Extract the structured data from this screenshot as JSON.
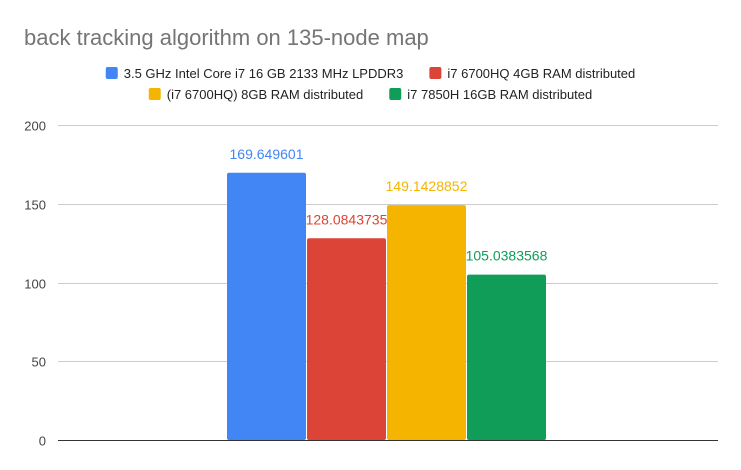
{
  "chart_data": {
    "type": "bar",
    "title": "back tracking algorithm on 135-node map",
    "xlabel": "",
    "ylabel": "",
    "ylim": [
      0,
      200
    ],
    "yticks": [
      0,
      50,
      100,
      150,
      200
    ],
    "grid": true,
    "legend_position": "top",
    "series": [
      {
        "name": "3.5 GHz Intel Core i7 16 GB 2133 MHz LPDDR3",
        "value": 169.649601,
        "label": "169.649601",
        "color": "#4285f4"
      },
      {
        "name": "i7 6700HQ 4GB RAM distributed",
        "value": 128.0843735,
        "label": "128.0843735",
        "color": "#db4437"
      },
      {
        "name": "(i7 6700HQ) 8GB RAM distributed",
        "value": 149.1428852,
        "label": "149.1428852",
        "color": "#f4b400"
      },
      {
        "name": "i7 7850H 16GB RAM distributed",
        "value": 105.0383568,
        "label": "105.0383568",
        "color": "#0f9d58"
      }
    ]
  }
}
